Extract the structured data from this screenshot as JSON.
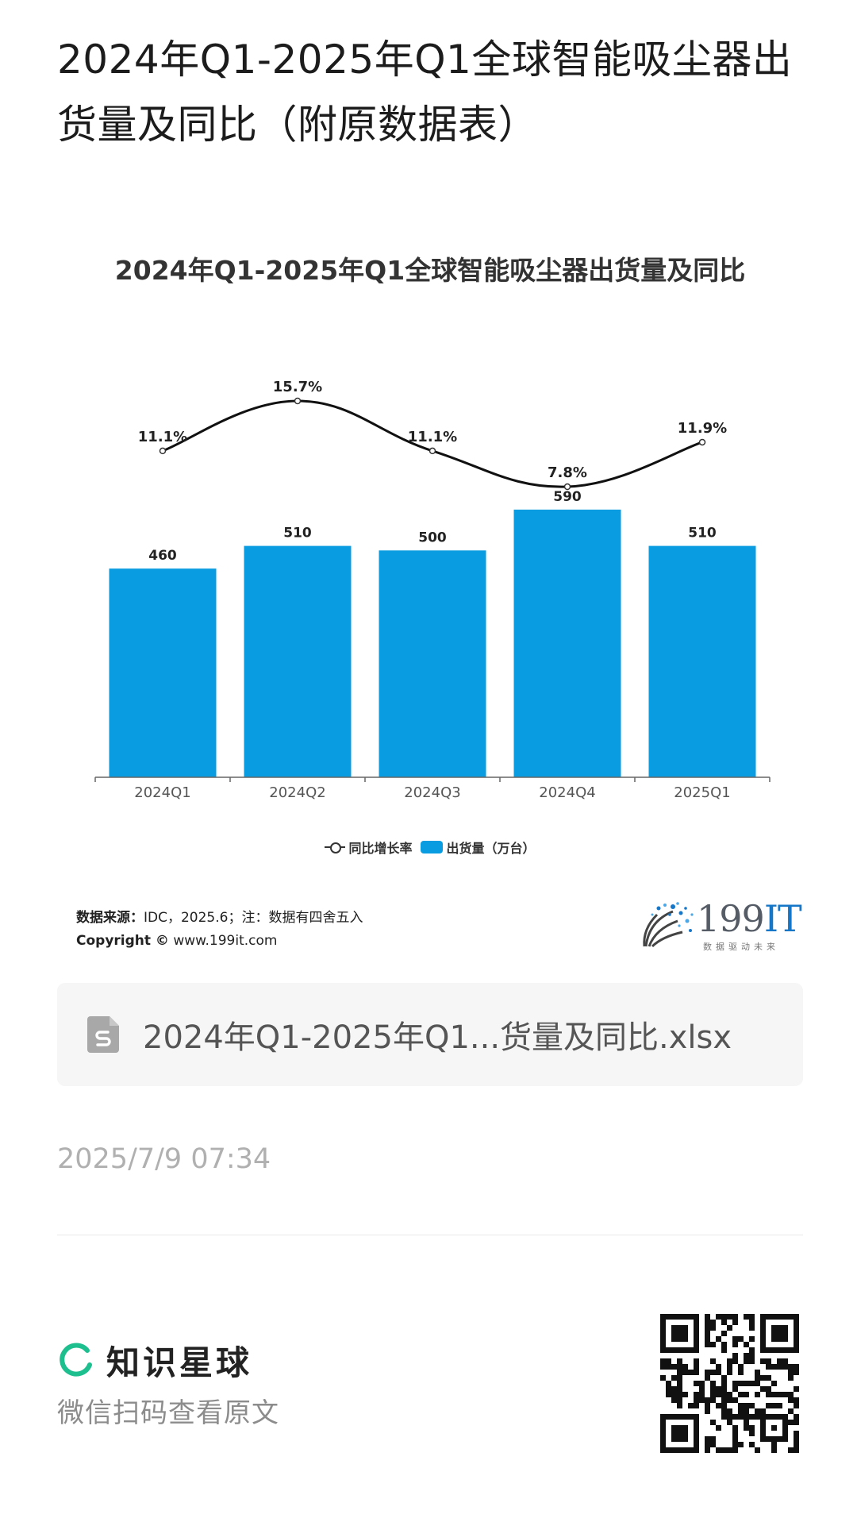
{
  "page": {
    "title": "2024年Q1-2025年Q1全球智能吸尘器出货量及同比（附原数据表）"
  },
  "chart_data": {
    "type": "bar",
    "title": "2024年Q1-2025年Q1全球智能吸尘器出货量及同比",
    "categories": [
      "2024Q1",
      "2024Q2",
      "2024Q3",
      "2024Q4",
      "2025Q1"
    ],
    "series": [
      {
        "name": "出货量（万台）",
        "type": "bar",
        "values": [
          460,
          510,
          500,
          590,
          510
        ],
        "labels": [
          "460",
          "510",
          "500",
          "590",
          "510"
        ],
        "color": "#0a9ce0"
      },
      {
        "name": "同比增长率",
        "type": "line",
        "values": [
          11.1,
          15.7,
          11.1,
          7.8,
          11.9
        ],
        "labels": [
          "11.1%",
          "15.7%",
          "11.1%",
          "7.8%",
          "11.9%"
        ],
        "color": "#111111"
      }
    ],
    "grid": false,
    "legend_position": "bottom"
  },
  "legend": {
    "line_label": "同比增长率",
    "bar_label": "出货量（万台）"
  },
  "source": {
    "label": "数据来源：",
    "text": "IDC，2025.6；注：数据有四舍五入",
    "copyright_label": "Copyright ©",
    "copyright_url": "www.199it.com"
  },
  "logo": {
    "main": "199",
    "accent": "IT",
    "tagline": "数据驱动未来"
  },
  "attachment": {
    "file_name": "2024年Q1-2025年Q1...货量及同比.xlsx",
    "icon": "spreadsheet-file-icon"
  },
  "timestamp": "2025/7/9 07:34",
  "footer": {
    "brand_name": "知识星球",
    "subtitle": "微信扫码查看原文",
    "qr_icon": "qr-code"
  }
}
